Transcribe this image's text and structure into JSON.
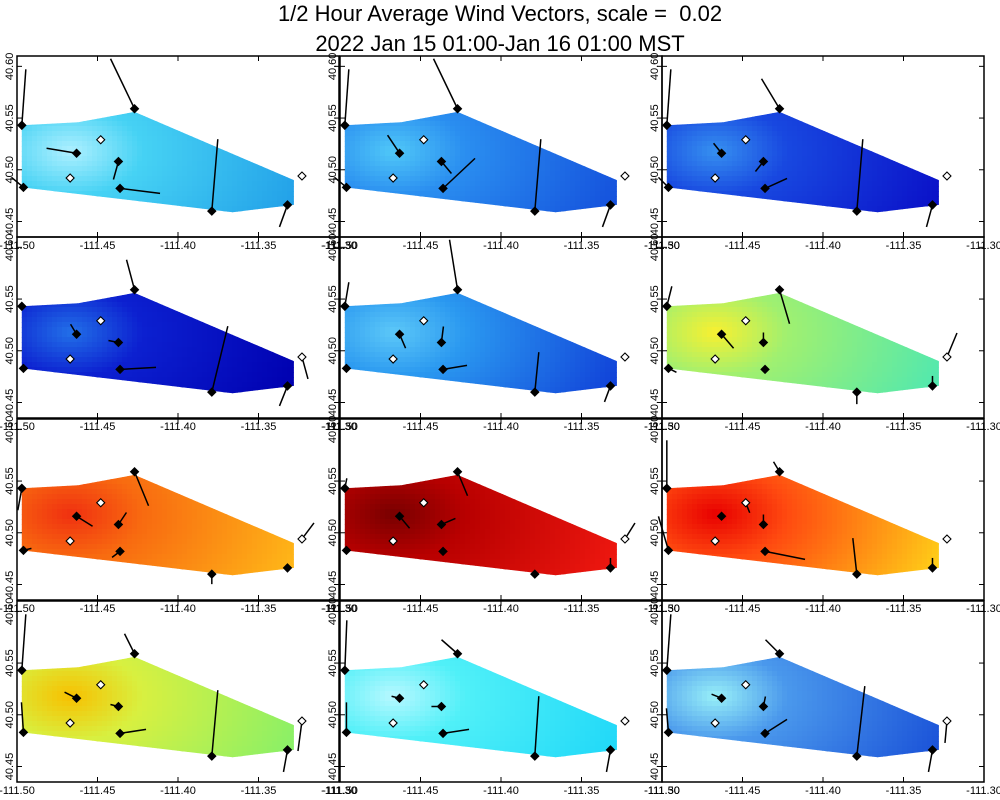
{
  "title": {
    "line1": "1/2 Hour Average Wind Vectors, scale =  0.02",
    "line2": "2022 Jan 15 01:00-Jan 16 01:00 MST"
  },
  "chart_data": {
    "type": "wind-vector-panels",
    "grid": "4x3",
    "xlim": [
      -111.5,
      -111.3
    ],
    "ylim": [
      40.435,
      40.61
    ],
    "xticks": [
      -111.5,
      -111.45,
      -111.4,
      -111.35,
      -111.3
    ],
    "xtick_labels": [
      "-111.50",
      "-111.45",
      "-111.40",
      "-111.35",
      "-111.30"
    ],
    "yticks": [
      40.45,
      40.5,
      40.55,
      40.6
    ],
    "ytick_labels": [
      "40.45",
      "40.50",
      "40.55",
      "40.60"
    ],
    "domain_polygon": [
      [
        -111.497,
        40.543
      ],
      [
        -111.462,
        40.546
      ],
      [
        -111.427,
        40.556
      ],
      [
        -111.328,
        40.49
      ],
      [
        -111.328,
        40.466
      ],
      [
        -111.366,
        40.459
      ],
      [
        -111.497,
        40.483
      ]
    ],
    "stations": [
      {
        "id": "S1",
        "lon": -111.497,
        "lat": 40.543,
        "filled": true
      },
      {
        "id": "S2",
        "lon": -111.496,
        "lat": 40.483,
        "filled": true
      },
      {
        "id": "S3",
        "lon": -111.467,
        "lat": 40.492,
        "filled": false
      },
      {
        "id": "S4",
        "lon": -111.463,
        "lat": 40.516,
        "filled": true
      },
      {
        "id": "S5",
        "lon": -111.448,
        "lat": 40.529,
        "filled": false
      },
      {
        "id": "S6",
        "lon": -111.437,
        "lat": 40.508,
        "filled": true
      },
      {
        "id": "S7",
        "lon": -111.436,
        "lat": 40.482,
        "filled": true
      },
      {
        "id": "S8",
        "lon": -111.427,
        "lat": 40.559,
        "filled": true
      },
      {
        "id": "S9",
        "lon": -111.379,
        "lat": 40.46,
        "filled": true
      },
      {
        "id": "S10",
        "lon": -111.332,
        "lat": 40.466,
        "filled": true
      },
      {
        "id": "S11",
        "lon": -111.323,
        "lat": 40.494,
        "filled": false
      }
    ],
    "panels": [
      {
        "colors": {
          "hot": "#aef0ff",
          "mid": "#46d2f4",
          "cold": "#22a0e8"
        },
        "vectors": [
          {
            "station": "S1",
            "u": 0.04,
            "v": 0.56
          },
          {
            "station": "S2",
            "u": -0.12,
            "v": 0.1
          },
          {
            "station": "S4",
            "u": -0.3,
            "v": 0.05
          },
          {
            "station": "S6",
            "u": -0.05,
            "v": -0.18
          },
          {
            "station": "S7",
            "u": 0.4,
            "v": -0.05
          },
          {
            "station": "S8",
            "u": -0.24,
            "v": 0.5
          },
          {
            "station": "S9",
            "u": 0.06,
            "v": 0.72
          },
          {
            "station": "S10",
            "u": -0.08,
            "v": -0.22
          }
        ]
      },
      {
        "colors": {
          "hot": "#50c8f8",
          "mid": "#2a8ef0",
          "cold": "#1450dc"
        },
        "vectors": [
          {
            "station": "S1",
            "u": 0.04,
            "v": 0.56
          },
          {
            "station": "S2",
            "u": -0.12,
            "v": 0.1
          },
          {
            "station": "S4",
            "u": -0.12,
            "v": 0.18
          },
          {
            "station": "S6",
            "u": 0.1,
            "v": -0.12
          },
          {
            "station": "S7",
            "u": 0.32,
            "v": 0.3
          },
          {
            "station": "S8",
            "u": -0.24,
            "v": 0.5
          },
          {
            "station": "S9",
            "u": 0.06,
            "v": 0.72
          },
          {
            "station": "S10",
            "u": -0.08,
            "v": -0.22
          }
        ]
      },
      {
        "colors": {
          "hot": "#3690f0",
          "mid": "#1848e0",
          "cold": "#0a10c8"
        },
        "vectors": [
          {
            "station": "S1",
            "u": 0.04,
            "v": 0.56
          },
          {
            "station": "S2",
            "u": -0.1,
            "v": 0.1
          },
          {
            "station": "S4",
            "u": -0.08,
            "v": 0.1
          },
          {
            "station": "S6",
            "u": -0.08,
            "v": -0.1
          },
          {
            "station": "S7",
            "u": 0.22,
            "v": 0.1
          },
          {
            "station": "S8",
            "u": -0.18,
            "v": 0.3
          },
          {
            "station": "S9",
            "u": 0.06,
            "v": 0.72
          },
          {
            "station": "S10",
            "u": -0.06,
            "v": -0.22
          }
        ]
      },
      {
        "colors": {
          "hot": "#2270e8",
          "mid": "#0c20d0",
          "cold": "#0000b0"
        },
        "vectors": [
          {
            "station": "S1",
            "u": 0.0,
            "v": 0.0
          },
          {
            "station": "S3",
            "u": 0.0,
            "v": 0.0
          },
          {
            "station": "S4",
            "u": -0.06,
            "v": 0.1
          },
          {
            "station": "S6",
            "u": -0.1,
            "v": 0.02
          },
          {
            "station": "S7",
            "u": 0.36,
            "v": 0.02
          },
          {
            "station": "S8",
            "u": -0.08,
            "v": 0.3
          },
          {
            "station": "S9",
            "u": 0.16,
            "v": 0.66
          },
          {
            "station": "S10",
            "u": -0.08,
            "v": -0.2
          },
          {
            "station": "S11",
            "u": 0.06,
            "v": -0.22
          }
        ]
      },
      {
        "colors": {
          "hot": "#5cc8f8",
          "mid": "#2a98f0",
          "cold": "#1040d8"
        },
        "vectors": [
          {
            "station": "S1",
            "u": 0.04,
            "v": 0.24
          },
          {
            "station": "S4",
            "u": 0.06,
            "v": -0.14
          },
          {
            "station": "S6",
            "u": 0.02,
            "v": 0.16
          },
          {
            "station": "S7",
            "u": 0.24,
            "v": 0.04
          },
          {
            "station": "S8",
            "u": -0.08,
            "v": 0.5
          },
          {
            "station": "S9",
            "u": 0.04,
            "v": 0.4
          },
          {
            "station": "S10",
            "u": -0.06,
            "v": -0.16
          }
        ]
      },
      {
        "colors": {
          "hot": "#f8f030",
          "mid": "#a0f070",
          "cold": "#50e8b0"
        },
        "vectors": [
          {
            "station": "S1",
            "u": 0.05,
            "v": 0.2
          },
          {
            "station": "S2",
            "u": 0.08,
            "v": -0.04
          },
          {
            "station": "S4",
            "u": 0.12,
            "v": -0.14
          },
          {
            "station": "S6",
            "u": 0.0,
            "v": 0.1
          },
          {
            "station": "S8",
            "u": 0.1,
            "v": -0.34
          },
          {
            "station": "S9",
            "u": 0.0,
            "v": -0.12
          },
          {
            "station": "S10",
            "u": 0.0,
            "v": 0.1
          },
          {
            "station": "S11",
            "u": 0.1,
            "v": 0.24
          }
        ]
      },
      {
        "colors": {
          "hot": "#f03010",
          "mid": "#f86a10",
          "cold": "#ffb818"
        },
        "vectors": [
          {
            "station": "S1",
            "u": -0.04,
            "v": -0.22
          },
          {
            "station": "S2",
            "u": 0.08,
            "v": 0.02
          },
          {
            "station": "S4",
            "u": 0.16,
            "v": -0.1
          },
          {
            "station": "S6",
            "u": 0.08,
            "v": 0.12
          },
          {
            "station": "S7",
            "u": -0.08,
            "v": -0.06
          },
          {
            "station": "S8",
            "u": 0.14,
            "v": -0.34
          },
          {
            "station": "S9",
            "u": 0.0,
            "v": -0.1
          },
          {
            "station": "S11",
            "u": 0.12,
            "v": 0.16
          }
        ]
      },
      {
        "colors": {
          "hot": "#780000",
          "mid": "#b80000",
          "cold": "#f01810"
        },
        "vectors": [
          {
            "station": "S1",
            "u": 0.02,
            "v": 0.1
          },
          {
            "station": "S4",
            "u": 0.1,
            "v": -0.12
          },
          {
            "station": "S6",
            "u": 0.14,
            "v": 0.06
          },
          {
            "station": "S8",
            "u": 0.1,
            "v": -0.24
          },
          {
            "station": "S10",
            "u": 0.0,
            "v": 0.1
          },
          {
            "station": "S11",
            "u": 0.1,
            "v": 0.16
          }
        ]
      },
      {
        "colors": {
          "hot": "#e80000",
          "mid": "#ff4a10",
          "cold": "#ffd018"
        },
        "vectors": [
          {
            "station": "S1",
            "u": 0.0,
            "v": 0.48
          },
          {
            "station": "S2",
            "u": -0.1,
            "v": 0.34
          },
          {
            "station": "S5",
            "u": 0.04,
            "v": -0.1
          },
          {
            "station": "S6",
            "u": 0.0,
            "v": 0.1
          },
          {
            "station": "S7",
            "u": 0.4,
            "v": -0.08
          },
          {
            "station": "S8",
            "u": -0.06,
            "v": 0.1
          },
          {
            "station": "S9",
            "u": -0.04,
            "v": 0.36
          },
          {
            "station": "S10",
            "u": 0.0,
            "v": 0.1
          }
        ]
      },
      {
        "colors": {
          "hot": "#f8c000",
          "mid": "#d8f040",
          "cold": "#88f068"
        },
        "vectors": [
          {
            "station": "S1",
            "u": 0.04,
            "v": 0.56
          },
          {
            "station": "S2",
            "u": -0.02,
            "v": 0.3
          },
          {
            "station": "S4",
            "u": -0.12,
            "v": 0.06
          },
          {
            "station": "S6",
            "u": -0.08,
            "v": 0.02
          },
          {
            "station": "S7",
            "u": 0.26,
            "v": 0.04
          },
          {
            "station": "S8",
            "u": -0.1,
            "v": 0.2
          },
          {
            "station": "S9",
            "u": 0.06,
            "v": 0.66
          },
          {
            "station": "S10",
            "u": -0.04,
            "v": -0.22
          },
          {
            "station": "S11",
            "u": -0.04,
            "v": -0.3
          }
        ]
      },
      {
        "colors": {
          "hot": "#b8f8ff",
          "mid": "#50f0f8",
          "cold": "#20d8f8"
        },
        "vectors": [
          {
            "station": "S1",
            "u": 0.02,
            "v": 0.5
          },
          {
            "station": "S2",
            "u": 0.0,
            "v": 0.3
          },
          {
            "station": "S4",
            "u": -0.08,
            "v": 0.02
          },
          {
            "station": "S6",
            "u": -0.1,
            "v": 0.0
          },
          {
            "station": "S7",
            "u": 0.26,
            "v": 0.04
          },
          {
            "station": "S8",
            "u": -0.16,
            "v": 0.14
          },
          {
            "station": "S9",
            "u": 0.04,
            "v": 0.6
          },
          {
            "station": "S10",
            "u": -0.04,
            "v": -0.22
          }
        ]
      },
      {
        "colors": {
          "hot": "#98f0f8",
          "mid": "#4a98ec",
          "cold": "#1a52d8"
        },
        "vectors": [
          {
            "station": "S1",
            "u": 0.04,
            "v": 0.56
          },
          {
            "station": "S2",
            "u": -0.02,
            "v": 0.24
          },
          {
            "station": "S4",
            "u": -0.1,
            "v": 0.04
          },
          {
            "station": "S6",
            "u": 0.02,
            "v": 0.1
          },
          {
            "station": "S7",
            "u": 0.22,
            "v": 0.14
          },
          {
            "station": "S8",
            "u": -0.14,
            "v": 0.14
          },
          {
            "station": "S9",
            "u": 0.08,
            "v": 0.7
          },
          {
            "station": "S10",
            "u": -0.04,
            "v": -0.22
          },
          {
            "station": "S11",
            "u": -0.02,
            "v": -0.22
          }
        ]
      }
    ]
  }
}
